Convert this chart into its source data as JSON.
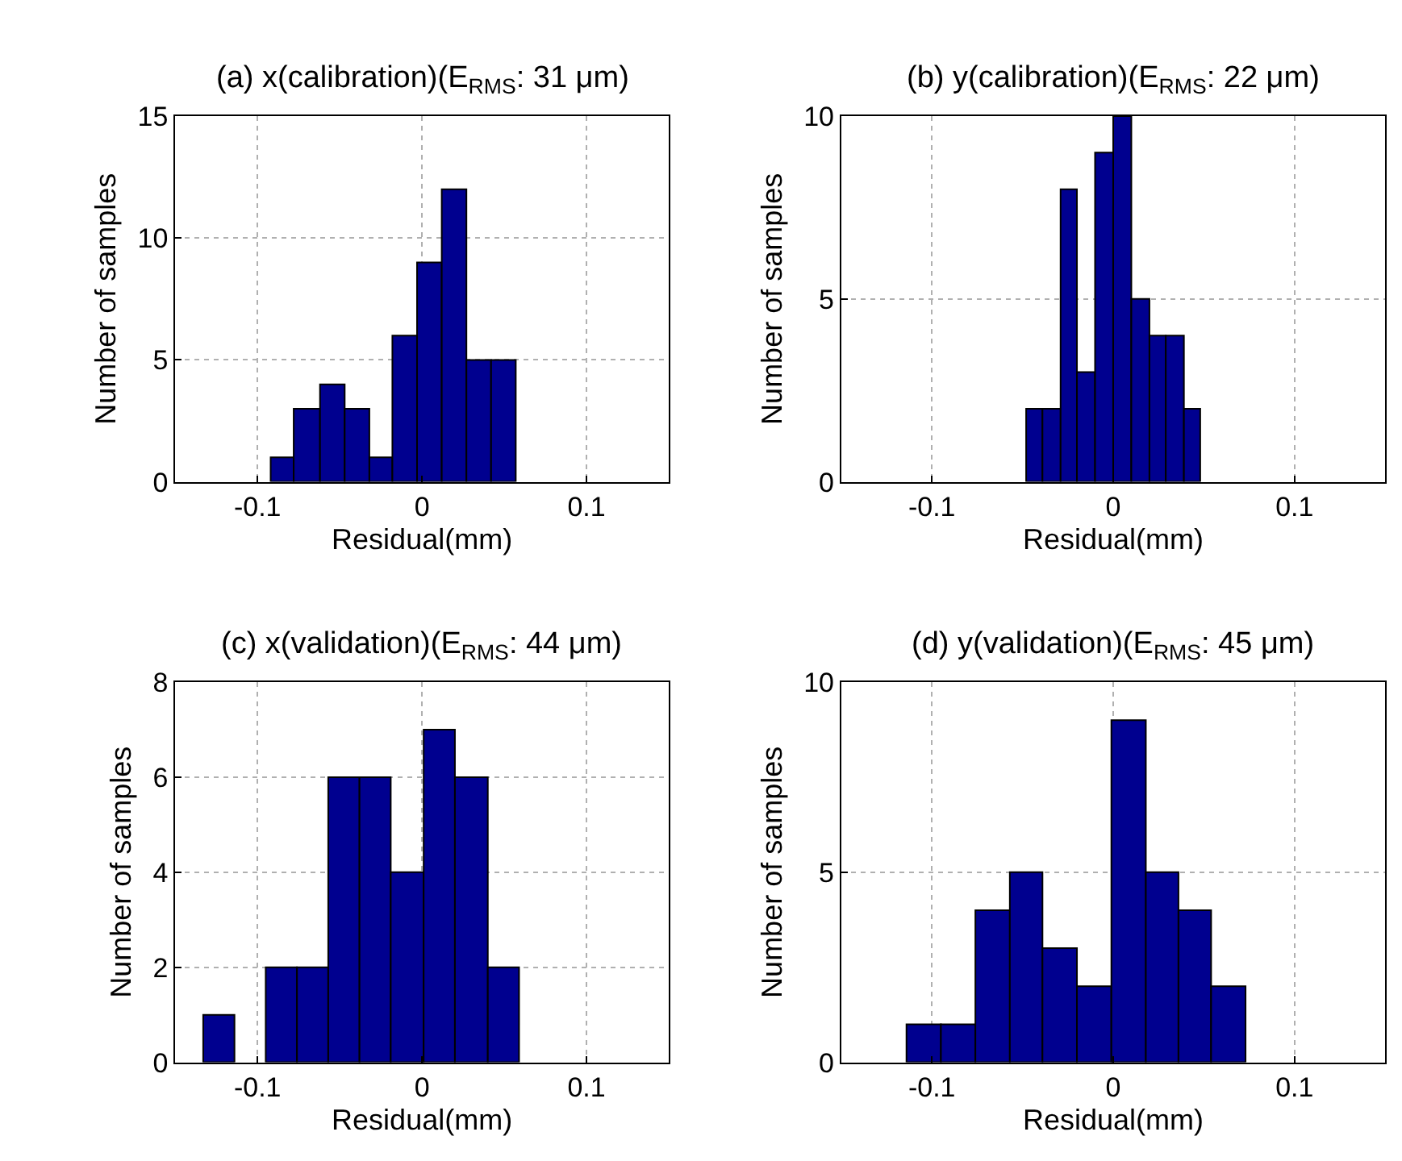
{
  "chart_data": [
    {
      "type": "histogram",
      "title": "(a) x(calibration)(E$_{RMS}$: 31 μm)",
      "xlabel": "Residual(mm)",
      "ylabel": "Number of samples",
      "bins": [
        -0.092,
        -0.078,
        -0.062,
        -0.047,
        -0.032,
        -0.018,
        -0.003,
        0.012,
        0.027,
        0.042,
        0.057
      ],
      "values": [
        1,
        3,
        4,
        3,
        1,
        6,
        9,
        12,
        5,
        5
      ],
      "color": "#00008f",
      "xlim": [
        -0.15,
        0.15
      ],
      "xticks": [
        -0.1,
        0,
        0.1
      ],
      "ylim": [
        0,
        15
      ],
      "yticks": [
        0,
        5,
        10,
        15
      ],
      "grid": true
    },
    {
      "type": "histogram",
      "title": "(b) y(calibration)(E$_{RMS}$: 22 μm)",
      "xlabel": "Residual(mm)",
      "ylabel": "Number of samples",
      "bins": [
        -0.048,
        -0.039,
        -0.029,
        -0.02,
        -0.01,
        0,
        0.01,
        0.02,
        0.029,
        0.039,
        0.048
      ],
      "values": [
        2,
        2,
        8,
        3,
        9,
        10,
        5,
        4,
        4,
        2
      ],
      "color": "#00008f",
      "xlim": [
        -0.15,
        0.15
      ],
      "xticks": [
        -0.1,
        0,
        0.1
      ],
      "ylim": [
        0,
        10
      ],
      "yticks": [
        0,
        5,
        10
      ],
      "grid": true
    },
    {
      "type": "histogram",
      "title": "(c) x(validation)(E$_{RMS}$: 44 μm)",
      "xlabel": "Residual(mm)",
      "ylabel": "Number of samples",
      "bins": [
        -0.133,
        -0.114,
        -0.095,
        -0.076,
        -0.057,
        -0.038,
        -0.019,
        0.001,
        0.02,
        0.04,
        0.059
      ],
      "values": [
        1,
        0,
        2,
        2,
        6,
        6,
        4,
        7,
        6,
        2
      ],
      "color": "#00008f",
      "xlim": [
        -0.15,
        0.15
      ],
      "xticks": [
        -0.1,
        0,
        0.1
      ],
      "ylim": [
        0,
        8
      ],
      "yticks": [
        0,
        2,
        4,
        6,
        8
      ],
      "grid": true
    },
    {
      "type": "histogram",
      "title": "(d) y(validation)(E$_{RMS}$: 45 μm)",
      "xlabel": "Residual(mm)",
      "ylabel": "Number of samples",
      "bins": [
        -0.114,
        -0.095,
        -0.076,
        -0.057,
        -0.039,
        -0.02,
        -0.001,
        0.018,
        0.036,
        0.054,
        0.073
      ],
      "values": [
        1,
        1,
        4,
        5,
        3,
        2,
        9,
        5,
        4,
        2
      ],
      "color": "#00008f",
      "xlim": [
        -0.15,
        0.15
      ],
      "xticks": [
        -0.1,
        0,
        0.1
      ],
      "ylim": [
        0,
        10
      ],
      "yticks": [
        0,
        5,
        10
      ],
      "grid": true
    }
  ]
}
